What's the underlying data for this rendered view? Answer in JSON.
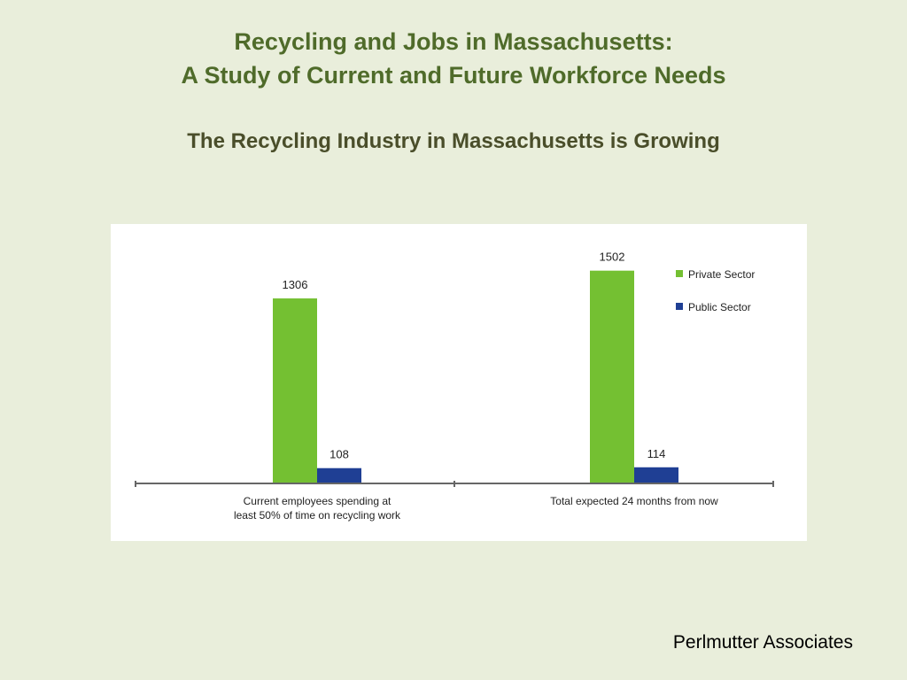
{
  "slide": {
    "title_line1": "Recycling and Jobs in Massachusetts:",
    "title_line2": "A Study of Current and Future Workforce Needs",
    "subtitle": "The Recycling Industry in Massachusetts is Growing",
    "footer": "Perlmutter Associates"
  },
  "chart_data": {
    "type": "bar",
    "categories": [
      [
        "Current employees spending at",
        "least 50% of time on recycling work"
      ],
      [
        "Total expected 24 months from now"
      ]
    ],
    "series": [
      {
        "name": "Private Sector",
        "values": [
          1306,
          1502
        ],
        "color": "#74c032"
      },
      {
        "name": "Public Sector",
        "values": [
          108,
          114
        ],
        "color": "#1f3f94"
      }
    ],
    "ylim": [
      0,
      1700
    ],
    "grid": false,
    "legend": "top-right",
    "data_labels": true
  }
}
